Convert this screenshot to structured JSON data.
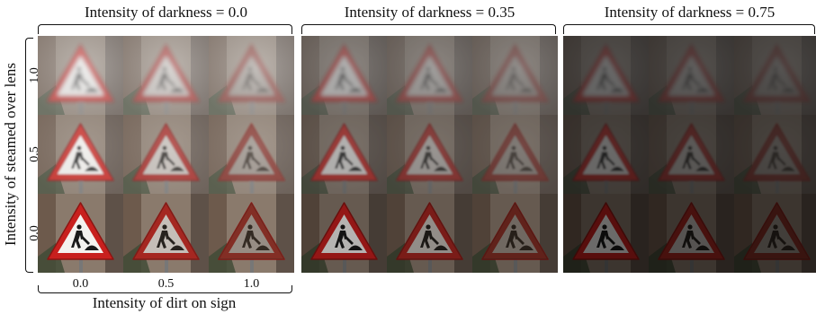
{
  "panels": [
    {
      "title": "Intensity of darkness = 0.0",
      "darkness": 0.0
    },
    {
      "title": "Intensity of darkness = 0.35",
      "darkness": 0.35
    },
    {
      "title": "Intensity of darkness = 0.75",
      "darkness": 0.75
    }
  ],
  "y_axis": {
    "label": "Intensity of steamed over lens",
    "ticks": [
      "1.0",
      "0.5",
      "0.0"
    ]
  },
  "x_axis": {
    "label": "Intensity of dirt on sign",
    "ticks": [
      "0.0",
      "0.5",
      "1.0"
    ]
  },
  "grid": {
    "steam_levels": [
      1.0,
      0.5,
      0.0
    ],
    "dirt_levels": [
      0.0,
      0.5,
      1.0
    ]
  },
  "colors": {
    "sign_red": "#c8201e",
    "sign_white": "#f4f2ef",
    "sign_figure": "#1a1a1a",
    "background_wall": "#8a7a6c"
  },
  "icon": "road-works-warning-sign-icon"
}
